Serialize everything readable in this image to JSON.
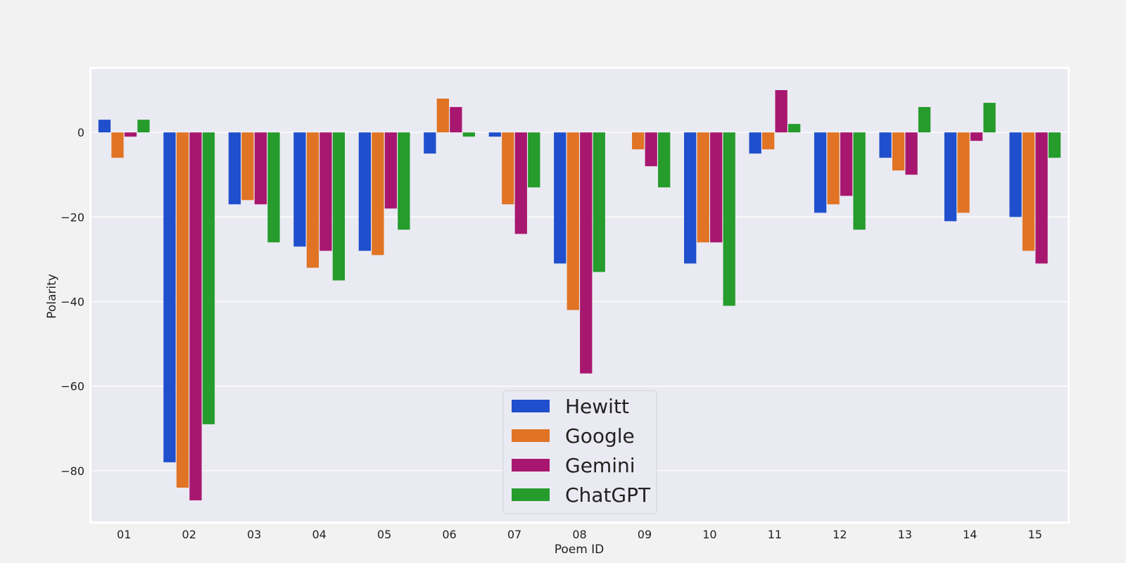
{
  "chart_data": {
    "type": "bar",
    "title": "",
    "xlabel": "Poem ID",
    "ylabel": "Polarity",
    "ylim": [
      -92,
      15
    ],
    "yticks": [
      0,
      -20,
      -40,
      -60,
      -80
    ],
    "ytick_labels": [
      "0",
      "−20",
      "−40",
      "−60",
      "−80"
    ],
    "grid": true,
    "legend_position": "bottom-center",
    "categories": [
      "01",
      "02",
      "03",
      "04",
      "05",
      "06",
      "07",
      "08",
      "09",
      "10",
      "11",
      "12",
      "13",
      "14",
      "15"
    ],
    "series": [
      {
        "name": "Hewitt",
        "color": "#1f4fcc",
        "values": [
          3,
          -78,
          -17,
          -27,
          -28,
          -5,
          -1,
          -31,
          0,
          -31,
          -5,
          -19,
          -6,
          -21,
          -20
        ]
      },
      {
        "name": "Google",
        "color": "#e07424",
        "values": [
          -6,
          -84,
          -16,
          -32,
          -29,
          8,
          -17,
          -42,
          -4,
          -26,
          -4,
          -17,
          -9,
          -19,
          -28
        ]
      },
      {
        "name": "Gemini",
        "color": "#a8176f",
        "values": [
          -1,
          -87,
          -17,
          -28,
          -18,
          6,
          -24,
          -57,
          -8,
          -26,
          10,
          -15,
          -10,
          -2,
          -31
        ]
      },
      {
        "name": "ChatGPT",
        "color": "#259c2c",
        "values": [
          3,
          -69,
          -26,
          -35,
          -23,
          -1,
          -13,
          -33,
          -13,
          -41,
          2,
          -23,
          6,
          7,
          -6
        ]
      }
    ]
  }
}
